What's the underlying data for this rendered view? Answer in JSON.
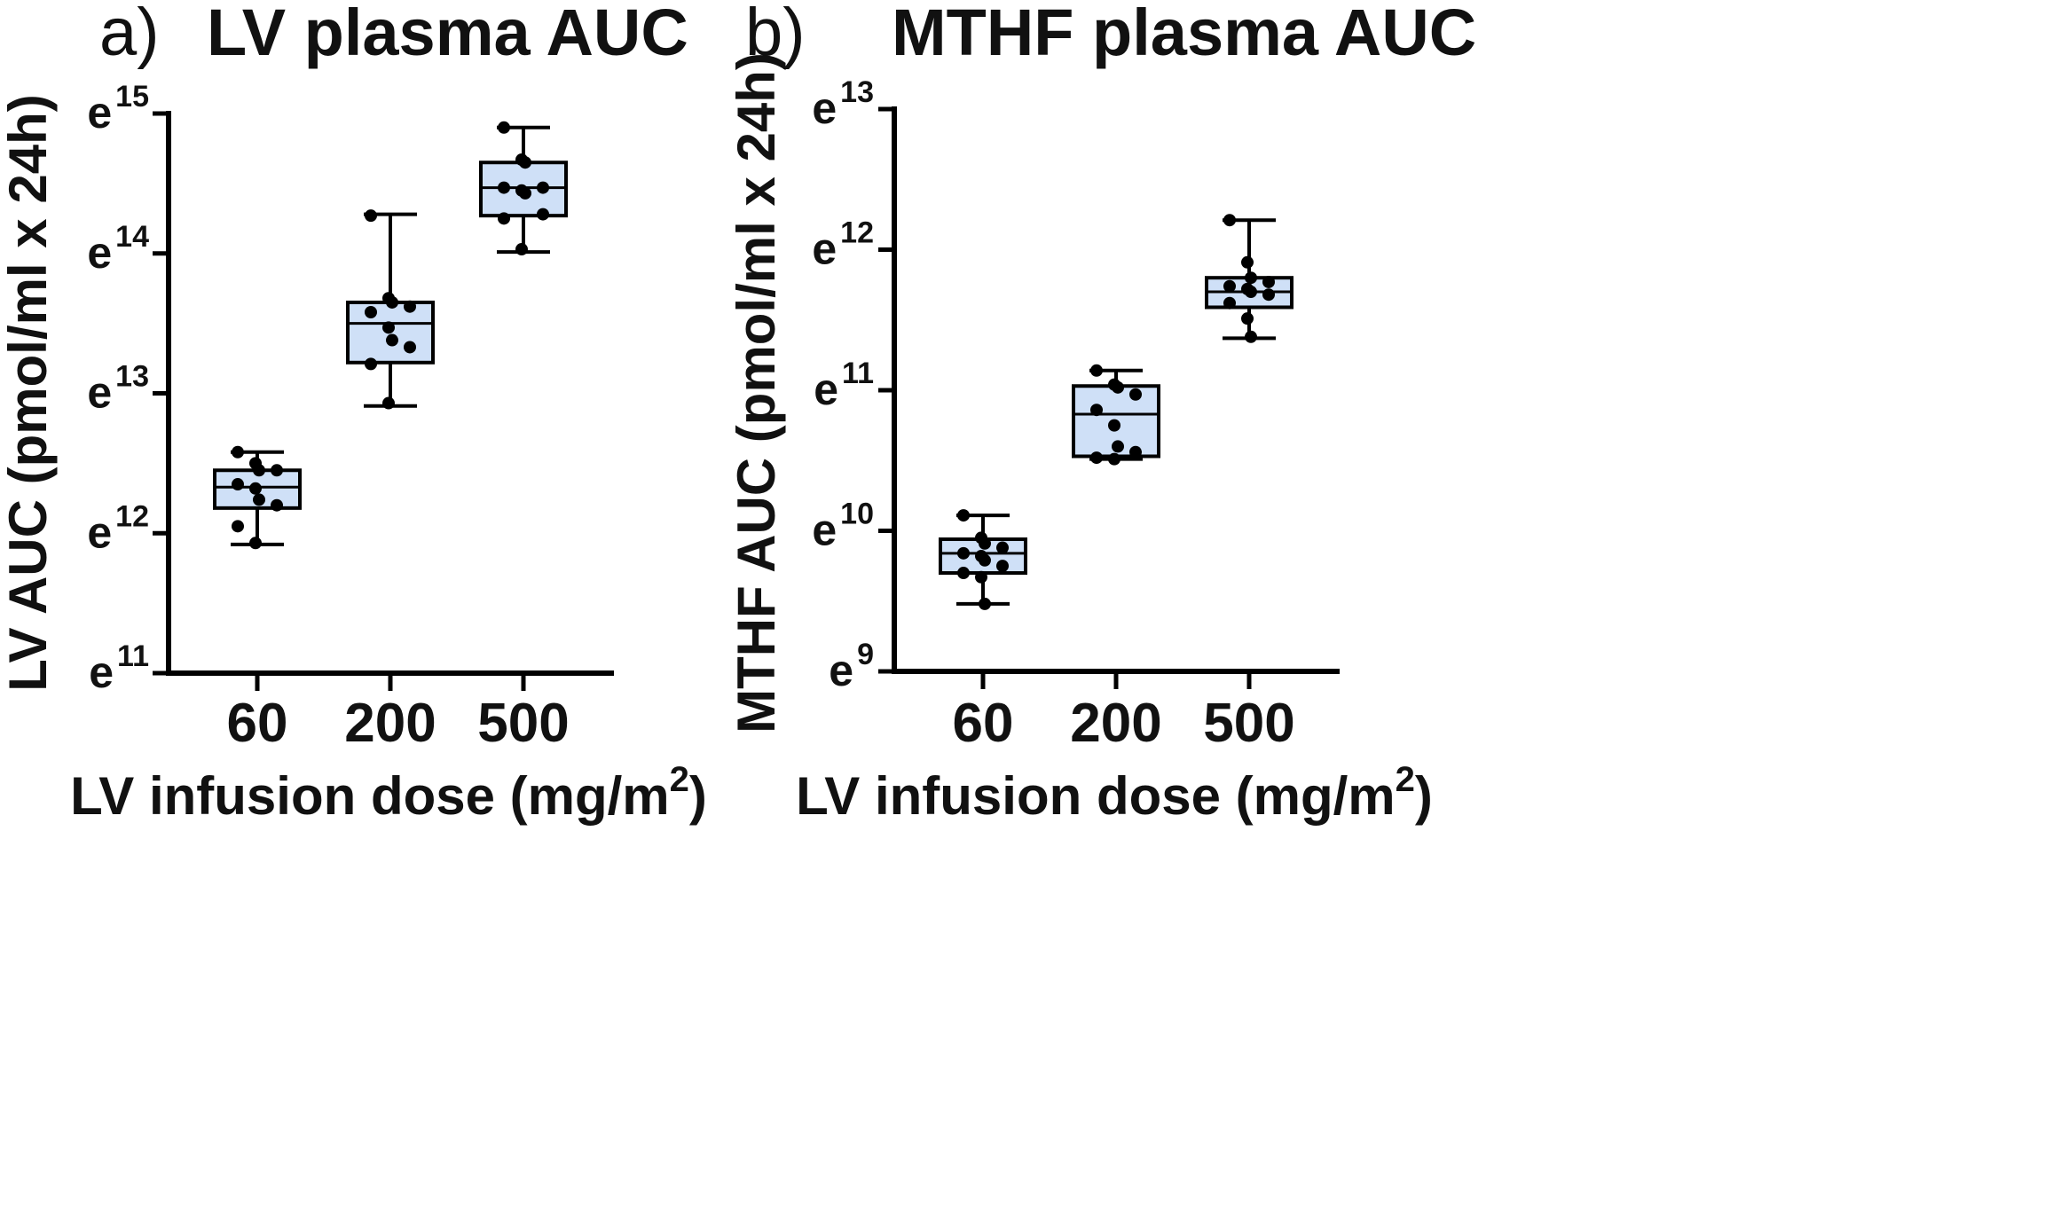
{
  "chart_data": [
    {
      "type": "box",
      "panel_letter": "a)",
      "title": "LV plasma AUC",
      "xlabel": "LV infusion dose (mg/m",
      "xlabel_sup": "2",
      "xlabel_end": ")",
      "ylabel": "LV AUC (pmol/ml x 24h)",
      "yscale": "log (natural exponent)",
      "ylim": [
        11,
        15
      ],
      "yticks": [
        {
          "base": "e",
          "exp": "11",
          "value": 11
        },
        {
          "base": "e",
          "exp": "12",
          "value": 12
        },
        {
          "base": "e",
          "exp": "13",
          "value": 13
        },
        {
          "base": "e",
          "exp": "14",
          "value": 14
        },
        {
          "base": "e",
          "exp": "15",
          "value": 15
        }
      ],
      "categories": [
        "60",
        "200",
        "500"
      ],
      "box_color": "#cfe0f7",
      "series": [
        {
          "name": "60",
          "whisker_low": 11.92,
          "q1": 12.18,
          "median": 12.33,
          "q3": 12.45,
          "whisker_high": 12.58,
          "points": [
            12.58,
            12.5,
            12.45,
            12.45,
            12.35,
            12.32,
            12.24,
            12.2,
            12.05,
            11.93
          ]
        },
        {
          "name": "200",
          "whisker_low": 12.91,
          "q1": 13.22,
          "median": 13.5,
          "q3": 13.65,
          "whisker_high": 14.28,
          "points": [
            14.27,
            13.68,
            13.65,
            13.62,
            13.58,
            13.47,
            13.38,
            13.33,
            13.21,
            12.93
          ]
        },
        {
          "name": "500",
          "whisker_low": 14.01,
          "q1": 14.27,
          "median": 14.47,
          "q3": 14.65,
          "whisker_high": 14.9,
          "points": [
            14.9,
            14.67,
            14.65,
            14.47,
            14.47,
            14.45,
            14.43,
            14.28,
            14.25,
            14.03
          ]
        }
      ]
    },
    {
      "type": "box",
      "panel_letter": "b)",
      "title": "MTHF plasma AUC",
      "xlabel": "LV infusion dose (mg/m",
      "xlabel_sup": "2",
      "xlabel_end": ")",
      "ylabel": "MTHF AUC (pmol/ml x 24h)",
      "yscale": "log (natural exponent)",
      "ylim": [
        9,
        13
      ],
      "yticks": [
        {
          "base": "e",
          "exp": "9",
          "value": 9
        },
        {
          "base": "e",
          "exp": "10",
          "value": 10
        },
        {
          "base": "e",
          "exp": "11",
          "value": 11
        },
        {
          "base": "e",
          "exp": "12",
          "value": 12
        },
        {
          "base": "e",
          "exp": "13",
          "value": 13
        }
      ],
      "categories": [
        "60",
        "200",
        "500"
      ],
      "box_color": "#cfe0f7",
      "series": [
        {
          "name": "60",
          "whisker_low": 9.48,
          "q1": 9.7,
          "median": 9.84,
          "q3": 9.94,
          "whisker_high": 10.11,
          "points": [
            10.11,
            9.95,
            9.91,
            9.88,
            9.84,
            9.82,
            9.79,
            9.75,
            9.7,
            9.67,
            9.48
          ]
        },
        {
          "name": "200",
          "whisker_low": 10.51,
          "q1": 10.53,
          "median": 10.83,
          "q3": 11.03,
          "whisker_high": 11.14,
          "points": [
            11.14,
            11.04,
            11.02,
            10.97,
            10.86,
            10.75,
            10.6,
            10.56,
            10.52,
            10.51
          ]
        },
        {
          "name": "500",
          "whisker_low": 11.37,
          "q1": 11.59,
          "median": 11.7,
          "q3": 11.8,
          "whisker_high": 12.21,
          "points": [
            12.21,
            11.91,
            11.8,
            11.77,
            11.74,
            11.72,
            11.7,
            11.68,
            11.62,
            11.51,
            11.38
          ]
        }
      ]
    }
  ]
}
